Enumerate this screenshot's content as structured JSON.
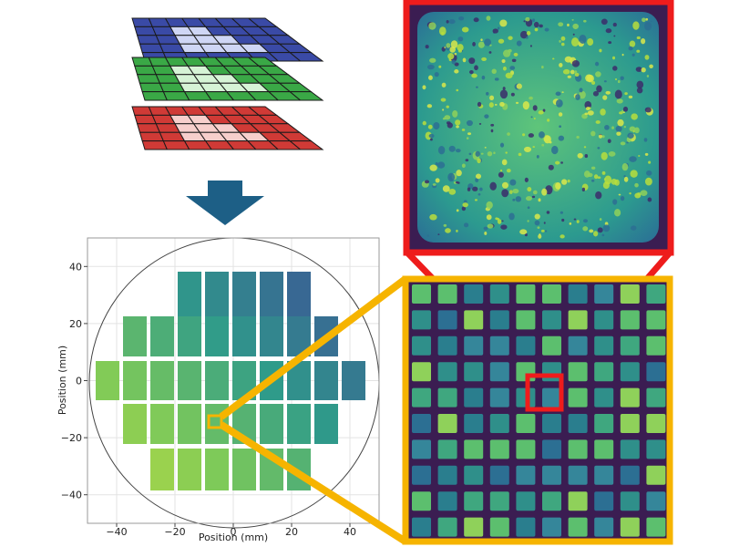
{
  "layers": [
    {
      "name": "blue",
      "color": "#3a4aa6",
      "highlight": "#cfd6f5"
    },
    {
      "name": "green",
      "color": "#3aa846",
      "highlight": "#d6f3d6"
    },
    {
      "name": "red",
      "color": "#d03a36",
      "highlight": "#f7cfcc"
    }
  ],
  "arrow": {
    "color": "#1d5f86",
    "direction": "down"
  },
  "wafer_map": {
    "xlabel": "Position (mm)",
    "ylabel": "Position (mm)",
    "xlim": [
      -50,
      50
    ],
    "ylim": [
      -50,
      50
    ],
    "x_ticks": [
      "−40",
      "−20",
      "0",
      "20",
      "40"
    ],
    "y_ticks": [
      "40",
      "20",
      "0",
      "−20",
      "−40"
    ],
    "wafer_radius_mm": 50,
    "grid": true,
    "colormap": "viridis"
  },
  "frames": {
    "zoom_high_color": "#ee1c1c",
    "zoom_mid_color": "#f6b400"
  }
}
